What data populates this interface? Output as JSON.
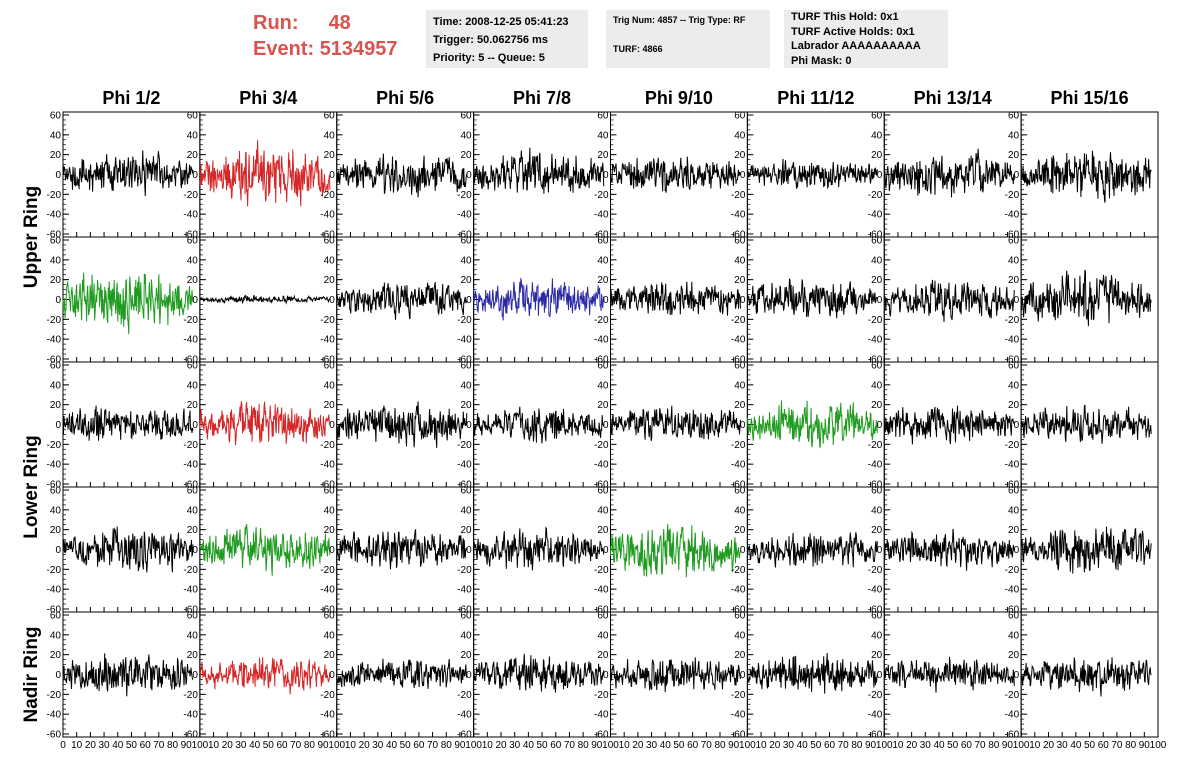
{
  "header": {
    "run_label": "Run:",
    "run_value": "48",
    "event_label": "Event:",
    "event_value": "5134957",
    "box1": [
      "Time: 2008-12-25 05:41:23",
      "Trigger: 50.062756 ms",
      "Priority: 5 -- Queue: 5"
    ],
    "box2": [
      "Trig Num: 4857 -- Trig Type: RF",
      "TURF: 4866"
    ],
    "box3": [
      "TURF This Hold: 0x1",
      "TURF Active Holds: 0x1",
      "Labrador AAAAAAAAAA",
      "Phi Mask: 0"
    ]
  },
  "colors": {
    "run_text": "#d9534f",
    "box_bg": "#ececec",
    "black": "#000000",
    "red": "#d62728",
    "green": "#1f9b1f",
    "blue": "#2a2aa8"
  },
  "chart_data": {
    "type": "line",
    "columns": [
      "Phi 1/2",
      "Phi 3/4",
      "Phi 5/6",
      "Phi 7/8",
      "Phi 9/10",
      "Phi 11/12",
      "Phi 13/14",
      "Phi 15/16"
    ],
    "rings": [
      {
        "label": "Upper Ring",
        "rows": [
          0,
          1
        ]
      },
      {
        "label": "Lower Ring",
        "rows": [
          2,
          3
        ]
      },
      {
        "label": "Nadir Ring",
        "rows": [
          4
        ]
      }
    ],
    "ylim": [
      -60,
      60
    ],
    "yticks": [
      -60,
      -40,
      -20,
      0,
      20,
      40,
      60
    ],
    "xlim": [
      0,
      100
    ],
    "xticks": [
      0,
      10,
      20,
      30,
      40,
      50,
      60,
      70,
      80,
      90,
      100
    ],
    "xdata_range": [
      0,
      95
    ],
    "samples": 260,
    "panels": [
      [
        {
          "color": "black",
          "amp": 12
        },
        {
          "color": "red",
          "amp": 17
        },
        {
          "color": "black",
          "amp": 12
        },
        {
          "color": "black",
          "amp": 13
        },
        {
          "color": "black",
          "amp": 11
        },
        {
          "color": "black",
          "amp": 8
        },
        {
          "color": "black",
          "amp": 13
        },
        {
          "color": "black",
          "amp": 15
        }
      ],
      [
        {
          "color": "green",
          "amp": 17
        },
        {
          "color": "black",
          "amp": 2
        },
        {
          "color": "black",
          "amp": 11
        },
        {
          "color": "blue",
          "amp": 12
        },
        {
          "color": "black",
          "amp": 11
        },
        {
          "color": "black",
          "amp": 11
        },
        {
          "color": "black",
          "amp": 11
        },
        {
          "color": "black",
          "amp": 14
        }
      ],
      [
        {
          "color": "black",
          "amp": 11
        },
        {
          "color": "red",
          "amp": 13
        },
        {
          "color": "black",
          "amp": 12
        },
        {
          "color": "black",
          "amp": 10
        },
        {
          "color": "black",
          "amp": 10
        },
        {
          "color": "green",
          "amp": 13
        },
        {
          "color": "black",
          "amp": 11
        },
        {
          "color": "black",
          "amp": 11
        }
      ],
      [
        {
          "color": "black",
          "amp": 12
        },
        {
          "color": "green",
          "amp": 13
        },
        {
          "color": "black",
          "amp": 11
        },
        {
          "color": "black",
          "amp": 11
        },
        {
          "color": "green",
          "amp": 15
        },
        {
          "color": "black",
          "amp": 10
        },
        {
          "color": "black",
          "amp": 10
        },
        {
          "color": "black",
          "amp": 14
        }
      ],
      [
        {
          "color": "black",
          "amp": 13
        },
        {
          "color": "red",
          "amp": 10
        },
        {
          "color": "black",
          "amp": 9
        },
        {
          "color": "black",
          "amp": 10
        },
        {
          "color": "black",
          "amp": 10
        },
        {
          "color": "black",
          "amp": 12
        },
        {
          "color": "black",
          "amp": 10
        },
        {
          "color": "black",
          "amp": 11
        }
      ]
    ]
  }
}
